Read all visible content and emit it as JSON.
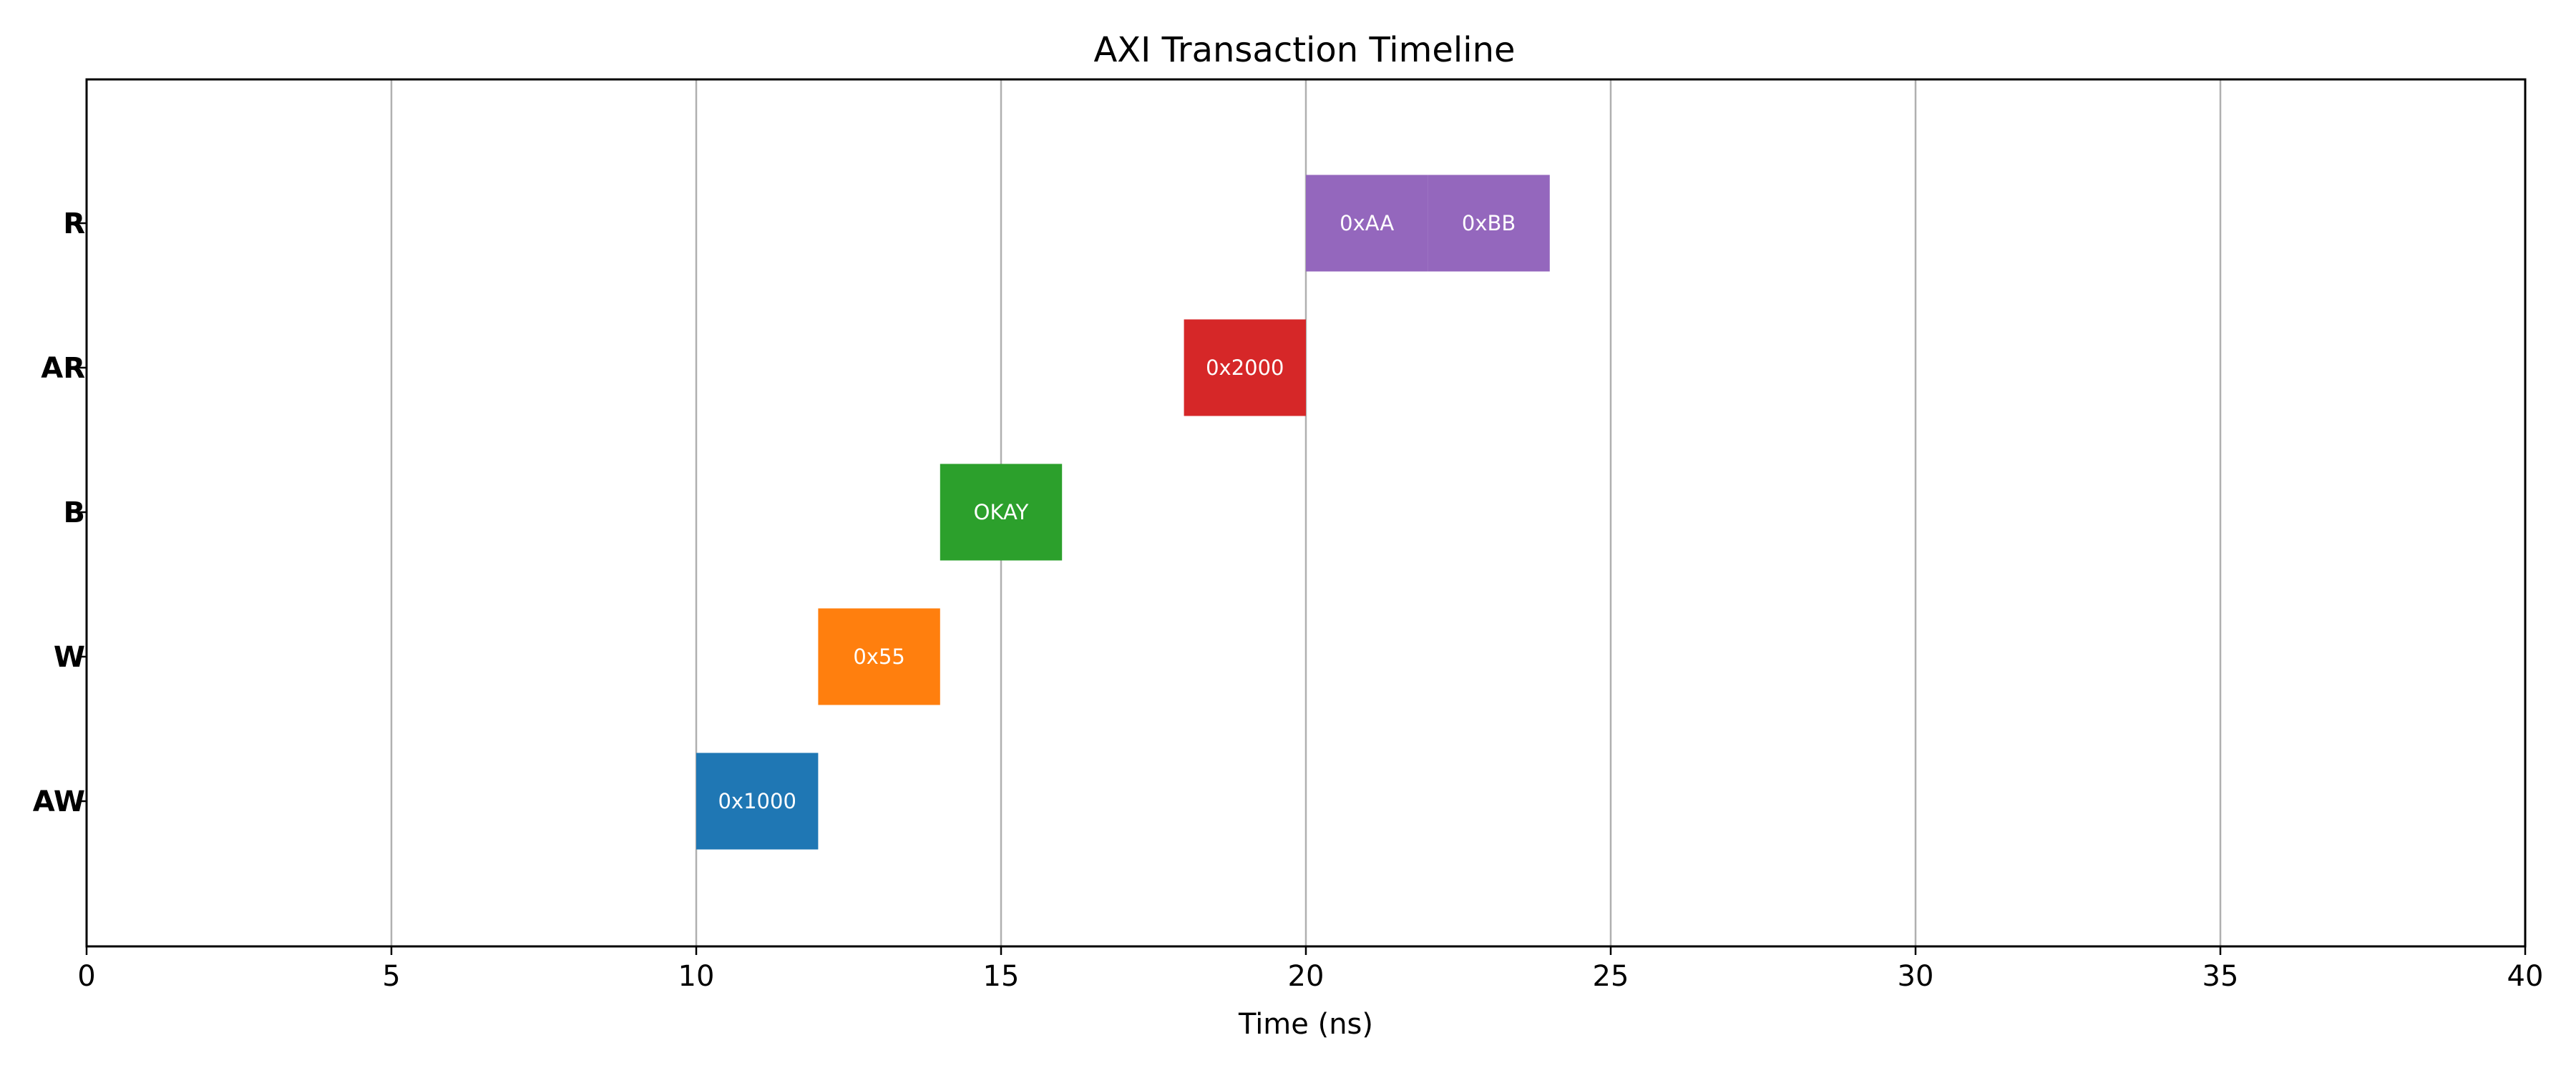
{
  "chart_data": {
    "type": "bar",
    "orientation": "horizontal-timeline",
    "title": "AXI Transaction Timeline",
    "xlabel": "Time (ns)",
    "ylabel": "",
    "xlim": [
      0,
      40
    ],
    "x_ticks": [
      0,
      5,
      10,
      15,
      20,
      25,
      30,
      35,
      40
    ],
    "grid": "vertical",
    "categories": [
      "AW",
      "W",
      "B",
      "AR",
      "R"
    ],
    "segments": [
      {
        "channel": "AW",
        "start": 10,
        "end": 12,
        "label": "0x1000",
        "color": "#1f77b4"
      },
      {
        "channel": "W",
        "start": 12,
        "end": 14,
        "label": "0x55",
        "color": "#ff7f0e"
      },
      {
        "channel": "B",
        "start": 14,
        "end": 16,
        "label": "OKAY",
        "color": "#2ca02c"
      },
      {
        "channel": "AR",
        "start": 18,
        "end": 20,
        "label": "0x2000",
        "color": "#d62728"
      },
      {
        "channel": "R",
        "start": 20,
        "end": 22,
        "label": "0xAA",
        "color": "#9467bd"
      },
      {
        "channel": "R",
        "start": 22,
        "end": 24,
        "label": "0xBB",
        "color": "#9467bd"
      }
    ]
  }
}
